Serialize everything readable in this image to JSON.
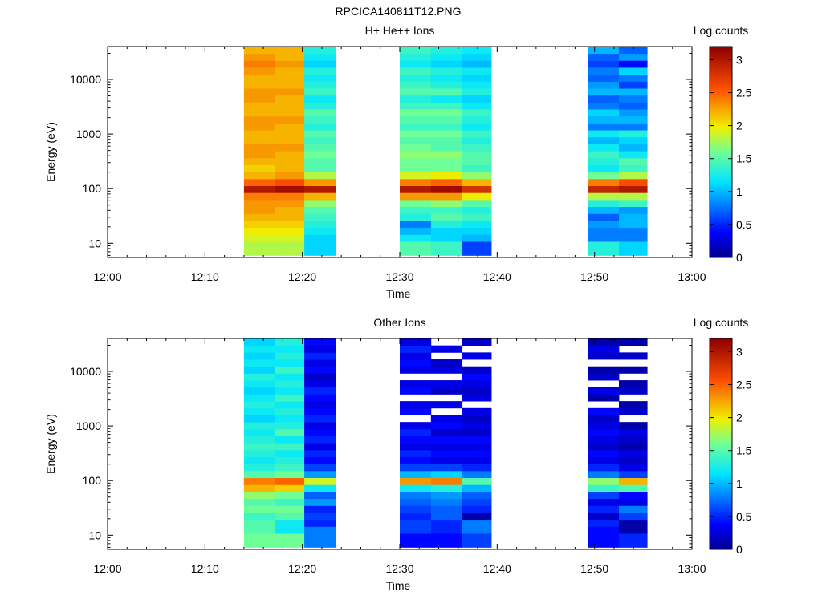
{
  "figure_title": "RPCICA140811T12.PNG",
  "chart_data": [
    {
      "type": "heatmap",
      "title": "H+ He++ Ions",
      "xlabel": "Time",
      "ylabel": "Energy (eV)",
      "colorbar_label": "Log counts",
      "y_scale": "log",
      "ylim": [
        5.5,
        40000
      ],
      "x_ticks": [
        "12:00",
        "12:10",
        "12:20",
        "12:30",
        "12:40",
        "12:50",
        "13:00"
      ],
      "y_ticks": [
        "10",
        "100",
        "1000",
        "10000"
      ],
      "colorbar_ticks": [
        "0",
        "0.5",
        "1",
        "1.5",
        "2",
        "2.5",
        "3"
      ],
      "colorbar_range": [
        0,
        3.2
      ],
      "time_columns_min": [
        [
          14,
          17.2
        ],
        [
          17.2,
          20.2
        ],
        [
          20.2,
          23.4
        ],
        [
          30,
          33.2
        ],
        [
          33.2,
          36.4
        ],
        [
          36.4,
          39.4
        ],
        [
          49.3,
          52.5
        ],
        [
          52.5,
          55.4
        ]
      ],
      "column_values": [
        [
          1.8,
          1.8,
          1.9,
          2.0,
          2.1,
          2.2,
          2.3,
          2.3,
          2.4,
          3.0,
          2.5,
          2.2,
          2.1,
          2.2,
          2.3,
          2.3,
          2.2,
          2.2,
          2.3,
          2.3,
          2.2,
          2.2,
          2.3,
          2.3,
          2.2,
          2.2,
          2.3,
          2.4,
          2.3,
          2.2
        ],
        [
          1.8,
          1.8,
          1.9,
          2.0,
          2.1,
          2.2,
          2.2,
          2.3,
          2.4,
          3.1,
          2.6,
          2.3,
          2.2,
          2.2,
          2.2,
          2.3,
          2.2,
          2.2,
          2.2,
          2.3,
          2.2,
          2.2,
          2.2,
          2.3,
          2.2,
          2.2,
          2.2,
          2.3,
          2.2,
          2.2
        ],
        [
          1.1,
          1.1,
          1.1,
          1.2,
          1.3,
          1.4,
          1.5,
          1.7,
          2.2,
          3.0,
          2.3,
          1.8,
          1.5,
          1.5,
          1.6,
          1.5,
          1.4,
          1.5,
          1.3,
          1.4,
          1.5,
          1.3,
          1.2,
          1.4,
          1.3,
          1.2,
          1.3,
          1.1,
          1.2,
          1.3
        ],
        [
          1.5,
          1.5,
          1.2,
          1.0,
          0.8,
          1.3,
          1.4,
          1.6,
          2.3,
          3.0,
          2.4,
          1.9,
          1.6,
          1.6,
          1.7,
          1.6,
          1.5,
          1.6,
          1.4,
          1.5,
          1.6,
          1.4,
          1.3,
          1.5,
          1.4,
          1.3,
          1.4,
          1.2,
          1.3,
          1.4
        ],
        [
          1.4,
          1.4,
          1.1,
          1.1,
          1.3,
          1.5,
          1.4,
          1.7,
          2.3,
          3.1,
          2.5,
          2.0,
          1.6,
          1.6,
          1.7,
          1.5,
          1.5,
          1.6,
          1.4,
          1.5,
          1.6,
          1.4,
          1.2,
          1.5,
          1.3,
          1.2,
          1.3,
          1.1,
          1.2,
          1.3
        ],
        [
          0.6,
          0.6,
          1.0,
          1.1,
          1.2,
          1.4,
          1.3,
          1.5,
          2.0,
          2.8,
          2.2,
          1.7,
          1.4,
          1.5,
          1.5,
          1.4,
          1.3,
          1.4,
          1.2,
          1.3,
          1.4,
          1.2,
          1.1,
          1.3,
          1.2,
          1.1,
          1.2,
          1.0,
          1.1,
          1.2
        ],
        [
          1.3,
          1.3,
          0.8,
          0.8,
          0.9,
          0.7,
          1.0,
          1.3,
          1.8,
          2.9,
          2.4,
          1.6,
          1.2,
          1.3,
          1.4,
          1.2,
          1.0,
          1.2,
          0.8,
          1.0,
          1.1,
          0.8,
          0.7,
          1.0,
          0.9,
          0.7,
          0.8,
          0.6,
          0.7,
          1.0
        ],
        [
          1.1,
          1.1,
          0.8,
          0.8,
          1.0,
          1.0,
          0.9,
          1.4,
          1.8,
          3.0,
          2.6,
          1.8,
          1.4,
          1.5,
          1.2,
          1.0,
          1.1,
          1.3,
          0.8,
          1.0,
          0.9,
          0.7,
          0.8,
          1.0,
          0.6,
          0.8,
          1.1,
          0.4,
          0.9,
          0.7
        ]
      ]
    },
    {
      "type": "heatmap",
      "title": "Other Ions",
      "xlabel": "Time",
      "ylabel": "Energy (eV)",
      "colorbar_label": "Log counts",
      "y_scale": "log",
      "ylim": [
        5.5,
        40000
      ],
      "x_ticks": [
        "12:00",
        "12:10",
        "12:20",
        "12:30",
        "12:40",
        "12:50",
        "13:00"
      ],
      "y_ticks": [
        "10",
        "100",
        "1000",
        "10000"
      ],
      "colorbar_ticks": [
        "0",
        "0.5",
        "1",
        "1.5",
        "2",
        "2.5",
        "3"
      ],
      "colorbar_range": [
        0,
        3.2
      ],
      "time_columns_min": [
        [
          14,
          17.2
        ],
        [
          17.2,
          20.2
        ],
        [
          20.2,
          23.4
        ],
        [
          30,
          33.2
        ],
        [
          33.2,
          36.4
        ],
        [
          36.4,
          39.4
        ],
        [
          49.3,
          52.5
        ],
        [
          52.5,
          55.4
        ]
      ],
      "column_values": [
        [
          1.6,
          1.6,
          1.5,
          1.5,
          1.4,
          1.6,
          1.5,
          1.7,
          2.2,
          2.4,
          1.5,
          1.3,
          1.2,
          1.3,
          1.4,
          1.3,
          1.2,
          1.3,
          1.1,
          1.2,
          1.3,
          1.2,
          1.1,
          1.2,
          1.3,
          1.1,
          1.2,
          1.1,
          1.2,
          1.1
        ],
        [
          1.6,
          1.6,
          1.2,
          1.2,
          1.5,
          1.6,
          1.4,
          1.6,
          2.1,
          2.5,
          1.6,
          1.4,
          1.3,
          1.2,
          1.4,
          1.2,
          1.5,
          1.3,
          1.2,
          1.3,
          1.2,
          1.4,
          1.2,
          1.3,
          1.2,
          1.4,
          1.2,
          1.3,
          1.2,
          1.3
        ],
        [
          0.8,
          0.8,
          0.8,
          0.5,
          0.6,
          0.5,
          0.9,
          0.7,
          1.2,
          1.9,
          0.9,
          0.6,
          0.4,
          0.5,
          0.3,
          0.5,
          0.4,
          0.3,
          0.5,
          0.4,
          0.3,
          0.4,
          0.5,
          0.3,
          0.2,
          0.4,
          0.3,
          0.5,
          0.3,
          0.4
        ],
        [
          0.4,
          0.4,
          0.6,
          0.6,
          0.5,
          0.6,
          0.7,
          0.8,
          1.2,
          2.3,
          1.0,
          0.6,
          0.4,
          0.5,
          0.3,
          0.4,
          0.5,
          0.3,
          -1,
          0.4,
          0.3,
          -1,
          0.4,
          0.3,
          -1,
          0.3,
          0.4,
          0.3,
          0.5,
          0.3
        ],
        [
          0.4,
          0.4,
          0.5,
          0.5,
          0.7,
          0.7,
          0.8,
          0.9,
          1.3,
          2.4,
          1.1,
          0.6,
          0.3,
          0.4,
          0.3,
          0.4,
          0.2,
          0.4,
          0.3,
          -1,
          0.3,
          -1,
          0.2,
          0.3,
          -1,
          0.3,
          0.2,
          -1,
          0.3,
          -1
        ],
        [
          0.6,
          0.6,
          0.8,
          0.8,
          0.1,
          0.5,
          0.6,
          0.7,
          1.0,
          1.5,
          0.8,
          0.5,
          0.3,
          0.4,
          0.3,
          0.4,
          0.2,
          0.3,
          0.2,
          0.3,
          -1,
          0.3,
          0.2,
          0.3,
          0.4,
          0.2,
          -1,
          0.3,
          -1,
          0.2
        ],
        [
          0.4,
          0.4,
          0.4,
          0.5,
          0.2,
          0.5,
          0.3,
          0.6,
          1.4,
          1.7,
          0.8,
          0.5,
          0.3,
          0.4,
          0.2,
          0.3,
          0.4,
          0.3,
          0.2,
          0.4,
          -1,
          0.1,
          0.3,
          -1,
          0.2,
          0.1,
          -1,
          0.2,
          0.3,
          0.1
        ],
        [
          0.5,
          0.5,
          0.1,
          0.1,
          0.6,
          0.8,
          0.3,
          0.4,
          1.5,
          2.2,
          0.6,
          0.3,
          0.2,
          0.3,
          0.1,
          0.2,
          0.3,
          0.1,
          -1,
          0.2,
          0.1,
          -1,
          0.2,
          0.1,
          -1,
          0.1,
          -1,
          0.2,
          -1,
          0.1
        ]
      ]
    }
  ]
}
